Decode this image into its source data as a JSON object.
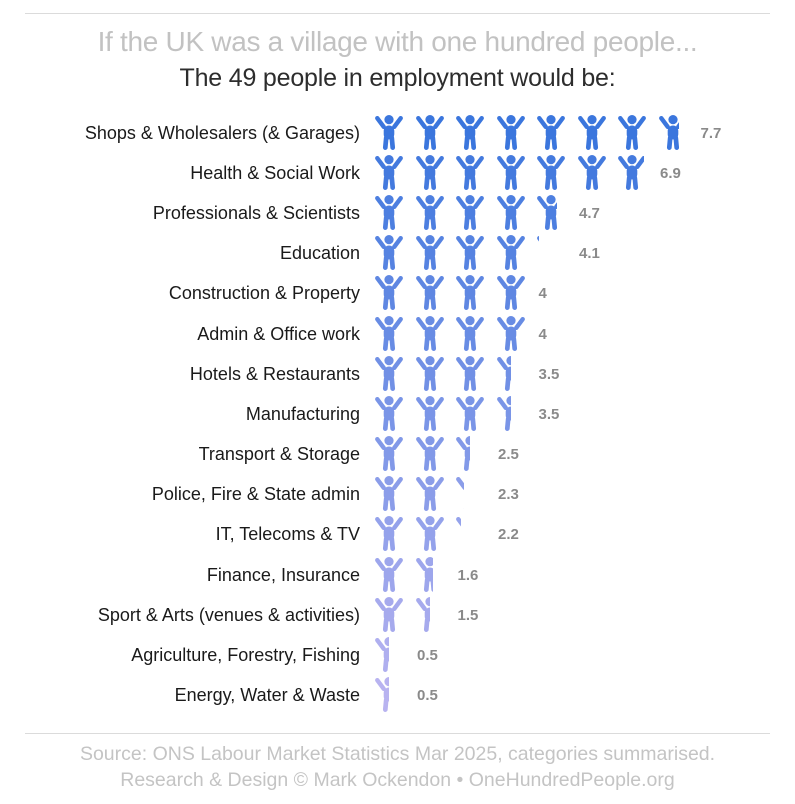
{
  "header": {
    "title": "If the UK was a village with one hundred people...",
    "subtitle": "The 49 people in employment would be:"
  },
  "footer": {
    "line1": "Source: ONS Labour Market Statistics Mar 2025, categories summarised.",
    "line2": "Research & Design © Mark Ockendon • OneHundredPeople.org"
  },
  "chart_data": {
    "type": "bar",
    "variant": "pictogram-isotype",
    "unit_icon": "person-arms-raised-icon",
    "people_per_icon": 1,
    "total_in_employment": "49",
    "title": "If the UK was a village with one hundred people...",
    "subtitle": "The 49 people in employment would be:",
    "orientation": "horizontal-rows",
    "legend": "none",
    "xlim": [
      0,
      8
    ],
    "categories": [
      "Shops & Wholesalers (& Garages)",
      "Health & Social Work",
      "Professionals & Scientists",
      "Education",
      "Construction & Property",
      "Admin & Office work",
      "Hotels & Restaurants",
      "Manufacturing",
      "Transport & Storage",
      "Police, Fire & State admin",
      "IT, Telecoms & TV",
      "Finance, Insurance",
      "Sport & Arts (venues & activities)",
      "Agriculture, Forestry, Fishing",
      "Energy, Water & Waste"
    ],
    "values": [
      7.7,
      6.9,
      4.7,
      4.1,
      4,
      4,
      3.5,
      3.5,
      2.5,
      2.3,
      2.2,
      1.6,
      1.5,
      0.5,
      0.5
    ],
    "value_labels": [
      "7.7",
      "6.9",
      "4.7",
      "4.1",
      "4",
      "4",
      "3.5",
      "3.5",
      "2.5",
      "2.3",
      "2.2",
      "1.6",
      "1.5",
      "0.5",
      "0.5"
    ],
    "row_colors": [
      "#3b76dd",
      "#447ade",
      "#4d7fe0",
      "#5683e1",
      "#5f87e2",
      "#688ce4",
      "#7190e5",
      "#7a95e7",
      "#8299e8",
      "#8b9de9",
      "#94a2eb",
      "#9da6ec",
      "#a6aaed",
      "#afafef",
      "#b8b3f0"
    ]
  },
  "colors": {
    "background": "#ffffff",
    "title_text": "#c2c2c2",
    "subtitle_text": "#2d2d2d",
    "category_text": "#1a1a1a",
    "value_text": "#8a8a8a",
    "divider": "#dbdbdb",
    "icon_gradient_start": "#3b76dd",
    "icon_gradient_end": "#b8b3f0"
  }
}
